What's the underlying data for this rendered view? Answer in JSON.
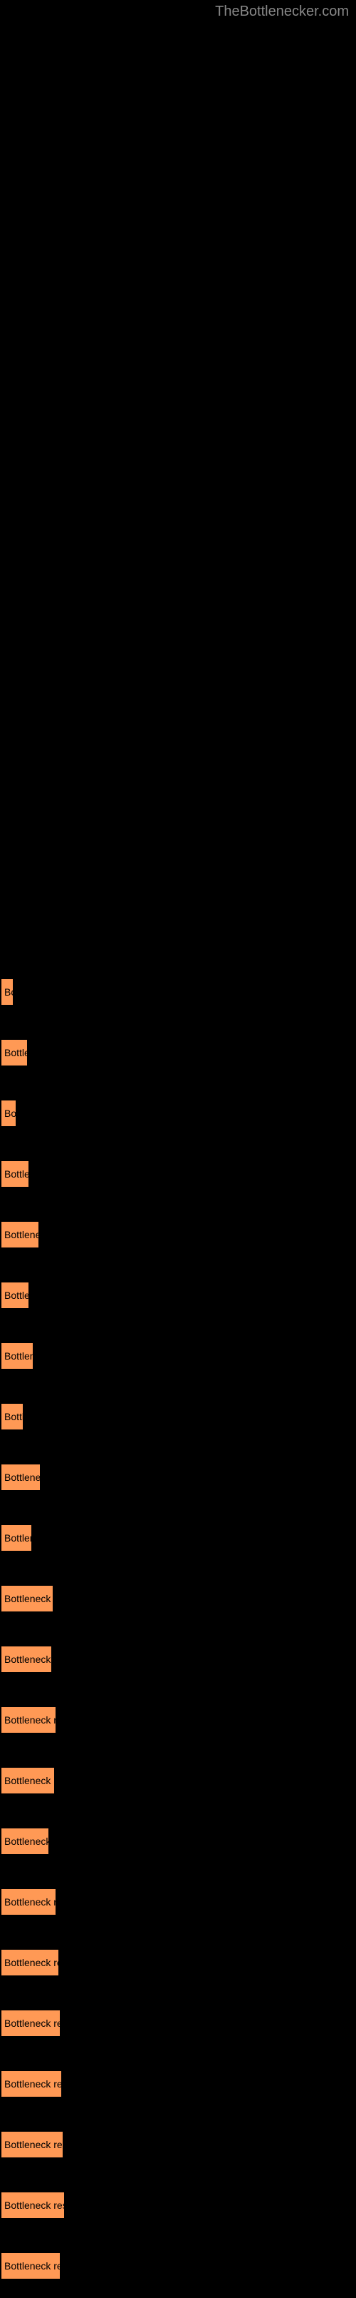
{
  "watermark": "TheBottlenecker.com",
  "chart": {
    "type": "bar",
    "bar_color": "#ff9955",
    "bar_border_color": "#000000",
    "text_color": "#000000",
    "background_color": "#000000",
    "label_fontsize": 14,
    "bars": [
      {
        "width": 20,
        "label": "Bo"
      },
      {
        "width": 40,
        "label": "Bottlene"
      },
      {
        "width": 24,
        "label": "Bott"
      },
      {
        "width": 42,
        "label": "Bottlenec"
      },
      {
        "width": 56,
        "label": "Bottleneck re"
      },
      {
        "width": 42,
        "label": "Bottlenec"
      },
      {
        "width": 48,
        "label": "Bottleneck"
      },
      {
        "width": 34,
        "label": "Bottlen"
      },
      {
        "width": 58,
        "label": "Bottleneck res"
      },
      {
        "width": 46,
        "label": "Bottlenec"
      },
      {
        "width": 76,
        "label": "Bottleneck result"
      },
      {
        "width": 74,
        "label": "Bottleneck result"
      },
      {
        "width": 80,
        "label": "Bottleneck result"
      },
      {
        "width": 78,
        "label": "Bottleneck result"
      },
      {
        "width": 70,
        "label": "Bottleneck resul"
      },
      {
        "width": 80,
        "label": "Bottleneck result"
      },
      {
        "width": 84,
        "label": "Bottleneck result"
      },
      {
        "width": 86,
        "label": "Bottleneck result"
      },
      {
        "width": 88,
        "label": "Bottleneck result"
      },
      {
        "width": 90,
        "label": "Bottleneck result"
      },
      {
        "width": 92,
        "label": "Bottleneck result"
      },
      {
        "width": 86,
        "label": "Bottleneck result"
      }
    ]
  }
}
